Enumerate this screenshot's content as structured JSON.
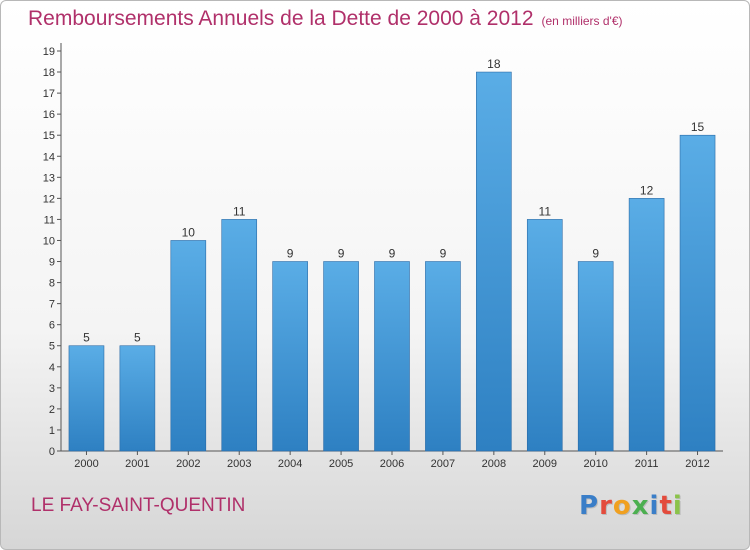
{
  "title": "Remboursements Annuels de la Dette de 2000 à 2012",
  "title_unit": "(en milliers d'€)",
  "city": "LE FAY-SAINT-QUENTIN",
  "brand": "Proxiti",
  "brand_colors": [
    "#3a7ec8",
    "#e34b3c",
    "#f0a020",
    "#4caf50",
    "#3a7ec8",
    "#e34b3c",
    "#8bc34a"
  ],
  "colors": {
    "bar_top": "#5aade6",
    "bar_bottom": "#2e80c2",
    "title": "#b0306a"
  },
  "chart_data": {
    "type": "bar",
    "categories": [
      "2000",
      "2001",
      "2002",
      "2003",
      "2004",
      "2005",
      "2006",
      "2007",
      "2008",
      "2009",
      "2010",
      "2011",
      "2012"
    ],
    "values": [
      5,
      5,
      10,
      11,
      9,
      9,
      9,
      9,
      18,
      11,
      9,
      12,
      15
    ],
    "ylim": [
      0,
      19
    ],
    "yticks": [
      0,
      1,
      2,
      3,
      4,
      5,
      6,
      7,
      8,
      9,
      10,
      11,
      12,
      13,
      14,
      15,
      16,
      17,
      18,
      19
    ],
    "grid": false,
    "data_labels": true
  }
}
